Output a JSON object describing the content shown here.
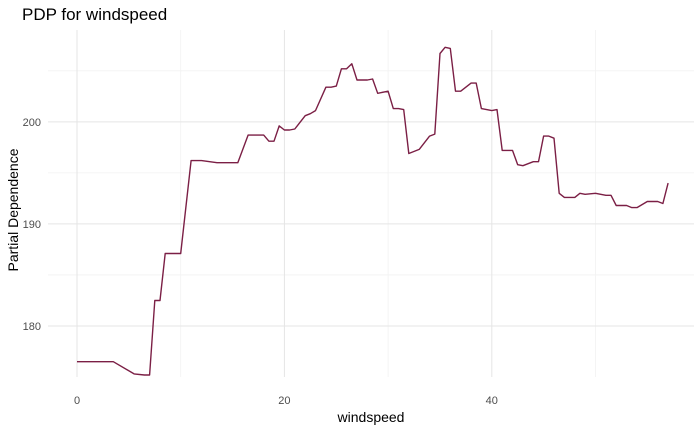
{
  "chart_data": {
    "type": "line",
    "title": "PDP for windspeed",
    "xlabel": "windspeed",
    "ylabel": "Partial Dependence",
    "xlim": [
      -2.8,
      59.5
    ],
    "ylim": [
      175,
      209
    ],
    "x_ticks": [
      0,
      20,
      40
    ],
    "y_ticks": [
      180,
      190,
      200
    ],
    "x_minor_ticks": [
      10,
      30,
      50
    ],
    "y_minor_ticks": [
      185,
      195,
      205
    ],
    "grid": true,
    "line_color": "#7b1f45",
    "x": [
      0,
      3,
      3.5,
      5.5,
      6.5,
      7,
      7.5,
      8,
      8.5,
      9,
      10,
      11,
      12,
      13.5,
      14.5,
      15.5,
      16.5,
      18,
      18.5,
      19,
      19.5,
      20,
      20.5,
      21,
      22,
      22.5,
      23,
      24,
      24.5,
      25,
      25.5,
      26,
      26.5,
      27,
      28,
      28.5,
      29,
      30,
      30.5,
      31,
      31.5,
      32,
      33,
      34,
      34.5,
      35,
      35.5,
      36,
      36.5,
      37,
      38,
      38.5,
      39,
      40,
      40.5,
      41,
      42,
      42.5,
      43,
      44,
      44.5,
      45,
      45.5,
      46,
      46.5,
      47,
      48,
      48.5,
      49,
      50,
      51,
      51.5,
      52,
      53,
      53.5,
      54,
      55,
      56,
      56.5,
      57
    ],
    "y": [
      176.5,
      176.5,
      176.5,
      175.3,
      175.2,
      175.2,
      182.5,
      182.5,
      187.1,
      187.1,
      187.1,
      196.2,
      196.2,
      196.0,
      196.0,
      196.0,
      198.7,
      198.7,
      198.1,
      198.1,
      199.6,
      199.2,
      199.2,
      199.3,
      200.6,
      200.8,
      201.1,
      203.4,
      203.4,
      203.5,
      205.2,
      205.2,
      205.7,
      204.1,
      204.1,
      204.2,
      202.8,
      203.0,
      201.3,
      201.3,
      201.2,
      196.9,
      197.3,
      198.6,
      198.8,
      206.7,
      207.3,
      207.2,
      203.0,
      203.0,
      203.8,
      203.8,
      201.3,
      201.1,
      201.2,
      197.2,
      197.2,
      195.8,
      195.7,
      196.1,
      196.1,
      198.6,
      198.6,
      198.4,
      193.0,
      192.6,
      192.6,
      193.0,
      192.9,
      193.0,
      192.8,
      192.8,
      191.8,
      191.8,
      191.6,
      191.6,
      192.2,
      192.2,
      192.0,
      194.0
    ]
  }
}
